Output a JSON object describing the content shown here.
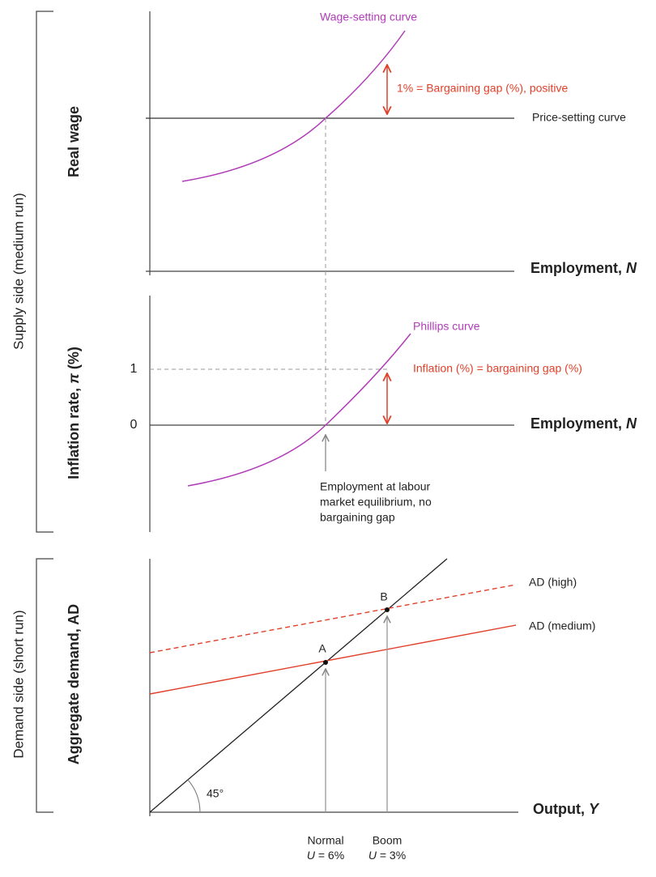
{
  "supply_side": {
    "label": "Supply side (medium run)",
    "wage_panel": {
      "y_label": "Real wage",
      "x_label": {
        "text": "Employment, ",
        "var": "N"
      },
      "wage_setting_curve": "Wage-setting curve",
      "price_setting_curve": "Price-setting curve",
      "gap_label": "1% = Bargaining gap (%), positive"
    },
    "inflation_panel": {
      "y_label": {
        "text": "Inflation rate, ",
        "var": "π",
        "suffix": " (%)"
      },
      "ticks": [
        "1",
        "0"
      ],
      "x_label": {
        "text": "Employment, ",
        "var": "N"
      },
      "phillips_curve": "Phillips curve",
      "gap_label": "Inflation (%) = bargaining gap (%)",
      "equilibrium_note": [
        "Employment at labour",
        "market equilibrium, no",
        "bargaining gap"
      ]
    }
  },
  "demand_side": {
    "label": "Demand side (short run)",
    "y_label": "Aggregate demand, AD",
    "x_label": {
      "text": "Output, ",
      "var": "Y"
    },
    "angle_label": "45°",
    "ad_high": "AD (high)",
    "ad_medium": "AD (medium)",
    "points": [
      "A",
      "B"
    ],
    "outcomes": [
      {
        "name": "Normal",
        "var": "U",
        "rest": " = 6%"
      },
      {
        "name": "Boom",
        "var": "U",
        "rest": " = 3%"
      }
    ]
  }
}
